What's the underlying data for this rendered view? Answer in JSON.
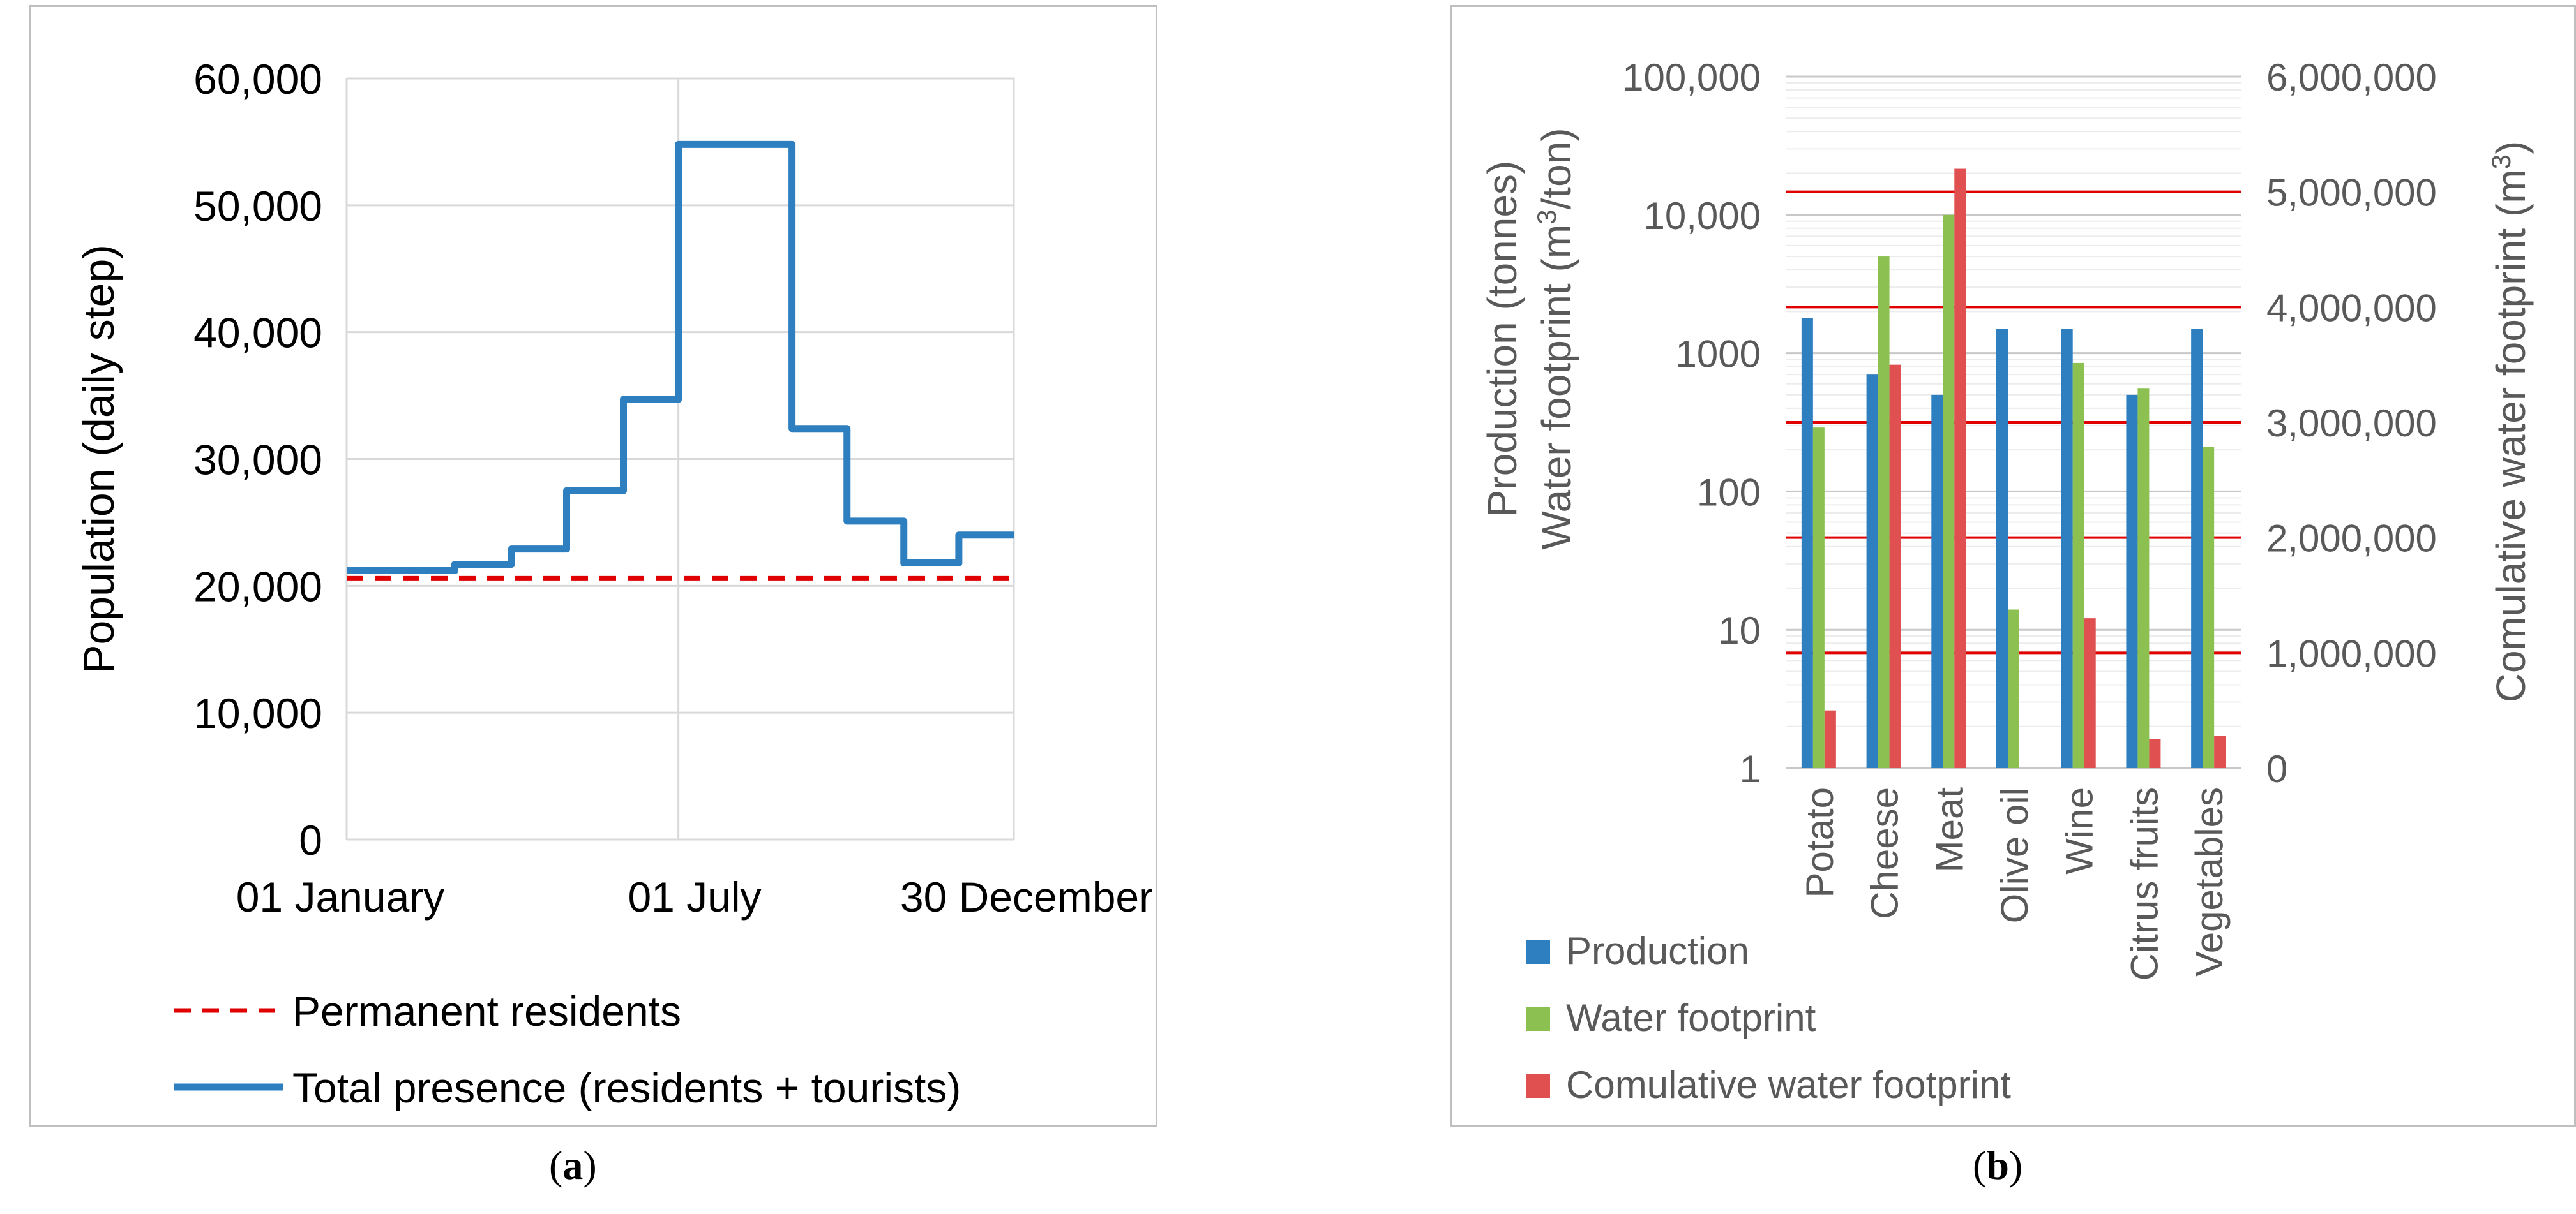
{
  "captions": {
    "a_open": "(",
    "a_letter": "a",
    "a_close": ")",
    "b_open": "(",
    "b_letter": "b",
    "b_close": ")"
  },
  "chart_data": [
    {
      "type": "line",
      "title": "",
      "xlabel": "",
      "ylabel": "Population (daily step)",
      "ylim": [
        0,
        60000
      ],
      "yticks": [
        0,
        10000,
        20000,
        30000,
        40000,
        50000,
        60000
      ],
      "ytick_labels": [
        "0",
        "10,000",
        "20,000",
        "30,000",
        "40,000",
        "50,000",
        "60,000"
      ],
      "xlim": [
        1,
        365
      ],
      "xtick_labels": [
        "01 January",
        "01 July",
        "30 December"
      ],
      "xtick_days": [
        1,
        182,
        364
      ],
      "legend_position": "bottom",
      "series": [
        {
          "name": "Permanent residents",
          "style": "dashed",
          "color": "#e00000",
          "days": [
            1,
            365
          ],
          "values": [
            20600,
            20600
          ]
        },
        {
          "name": "Total presence (residents + tourists)",
          "style": "solid-step",
          "color": "#2e7fc0",
          "days": [
            1,
            60,
            91,
            121,
            152,
            182,
            244,
            274,
            305,
            335,
            365
          ],
          "values": [
            21200,
            21700,
            22900,
            27500,
            34700,
            54800,
            32400,
            25100,
            21800,
            24000,
            24000
          ]
        }
      ]
    },
    {
      "type": "bar",
      "title": "",
      "categories": [
        "Potato",
        "Cheese",
        "Meat",
        "Olive oil",
        "Wine",
        "Citrus fruits",
        "Vegetables"
      ],
      "ylabel_line1": "Production  (tonnes)",
      "ylabel_line2_prefix": "Water footprint  (m",
      "ylabel_line2_sup": "3",
      "ylabel_line2_suffix": "/ton)",
      "y_scale": "log",
      "ylim": [
        1,
        100000
      ],
      "ytick_labels": [
        "1",
        "10",
        "100",
        "1000",
        "10,000",
        "100,000"
      ],
      "y2label_prefix": "Comulative water footprint  (m",
      "y2label_sup": "3",
      "y2label_suffix": ")",
      "y2lim": [
        0,
        6000000
      ],
      "y2tick_labels": [
        "0",
        "1,000,000",
        "2,000,000",
        "3,000,000",
        "4,000,000",
        "5,000,000",
        "6,000,000"
      ],
      "y2_gridlines": [
        1000000,
        2000000,
        3000000,
        4000000,
        5000000
      ],
      "legend_position": "bottom-left",
      "series": [
        {
          "name": "Production",
          "color": "#2e7fc0",
          "axis": "left",
          "values": [
            1800,
            700,
            500,
            1500,
            1500,
            500,
            1500
          ]
        },
        {
          "name": "Water footprint",
          "color": "#8cc152",
          "axis": "left",
          "values": [
            290,
            5000,
            10000,
            14,
            850,
            560,
            210
          ]
        },
        {
          "name": "Comulative water footprint",
          "color": "#e05050",
          "axis": "right",
          "values": [
            500000,
            3500000,
            5200000,
            0,
            1300000,
            250000,
            280000
          ]
        }
      ]
    }
  ]
}
